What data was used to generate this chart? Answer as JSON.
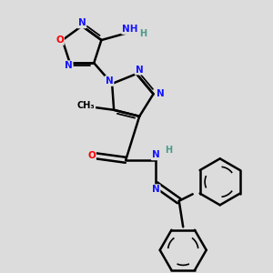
{
  "bg_color": "#dcdcdc",
  "atom_colors": {
    "C": "#000000",
    "N": "#1414ff",
    "O": "#ff0000",
    "H": "#4a9a8a"
  },
  "bond_color": "#000000",
  "bond_width": 1.8,
  "figsize": [
    3.0,
    3.0
  ],
  "dpi": 100,
  "xlim": [
    0,
    10
  ],
  "ylim": [
    0,
    10
  ]
}
